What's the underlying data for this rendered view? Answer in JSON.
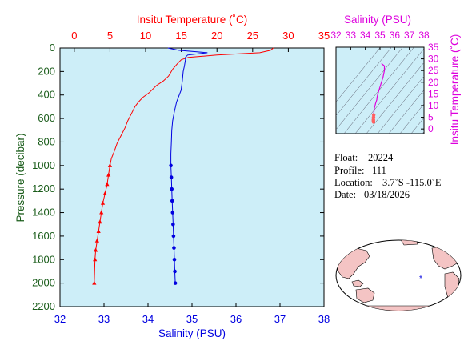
{
  "colors": {
    "temperature": "#ff0000",
    "salinity": "#0000e0",
    "pressure_axis": "#1a5c1a",
    "ts_salinity_axis": "#dd00dd",
    "plot_bg": "#cdeef8",
    "land": "#f4c4c4",
    "ocean": "#ffffff"
  },
  "chart_data": [
    {
      "type": "line",
      "xlabel_top": "Insitu Temperature (˚C)",
      "xlabel_bottom": "Salinity (PSU)",
      "ylabel": "Pressure (decibar)",
      "y_ticks": [
        "0",
        "200",
        "400",
        "600",
        "800",
        "1000",
        "1200",
        "1400",
        "1600",
        "1800",
        "2000",
        "2200"
      ],
      "temp_ticks": [
        "0",
        "5",
        "10",
        "15",
        "20",
        "25",
        "30",
        "35"
      ],
      "sal_ticks": [
        "32",
        "33",
        "34",
        "35",
        "36",
        "37",
        "38"
      ],
      "ylim": [
        0,
        2200
      ],
      "temp_lim": [
        -2,
        35
      ],
      "sal_lim": [
        32,
        38
      ],
      "series": [
        {
          "name": "",
          "variable": "temperature",
          "x": [
            27.9,
            27.5,
            26.0,
            20.0,
            16.0,
            15.0,
            14.5,
            13.8,
            13.2,
            12.5,
            11.5,
            10.5,
            9.6,
            9.0,
            8.5,
            8.0,
            7.5,
            7.1,
            6.6,
            6.0,
            5.6,
            5.2,
            5.0,
            4.8,
            4.6,
            4.3,
            4.0,
            3.8,
            3.6,
            3.4,
            3.2,
            3.0,
            2.9,
            2.8
          ],
          "y": [
            0,
            20,
            40,
            60,
            80,
            100,
            130,
            180,
            240,
            280,
            320,
            380,
            420,
            460,
            500,
            560,
            620,
            680,
            740,
            810,
            880,
            940,
            1000,
            1080,
            1160,
            1240,
            1320,
            1400,
            1480,
            1560,
            1640,
            1720,
            1800,
            2000
          ]
        },
        {
          "name": "",
          "variable": "salinity",
          "x": [
            34.45,
            34.7,
            35.35,
            34.9,
            34.85,
            34.85,
            34.83,
            34.8,
            34.78,
            34.75,
            34.7,
            34.65,
            34.6,
            34.56,
            34.54,
            34.53,
            34.52,
            34.52,
            34.53,
            34.54,
            34.55,
            34.56,
            34.57,
            34.58,
            34.59,
            34.6,
            34.61,
            34.62
          ],
          "y": [
            0,
            20,
            40,
            60,
            80,
            100,
            150,
            200,
            280,
            360,
            410,
            460,
            540,
            620,
            700,
            800,
            900,
            1000,
            1100,
            1200,
            1300,
            1400,
            1500,
            1600,
            1700,
            1800,
            1900,
            2000
          ]
        }
      ]
    },
    {
      "type": "scatter",
      "xlabel": "Salinity (PSU)",
      "ylabel": "Insitu Temperature (˚C)",
      "x_ticks": [
        "32",
        "33",
        "34",
        "35",
        "36",
        "37",
        "38"
      ],
      "y_ticks": [
        "0",
        "5",
        "10",
        "15",
        "20",
        "25",
        "30",
        "35"
      ],
      "xlim": [
        32,
        38
      ],
      "ylim": [
        -2,
        35
      ],
      "series": [
        {
          "name": "",
          "x": [
            35.1,
            35.3,
            35.3,
            35.2,
            35.05,
            34.95,
            34.85,
            34.8,
            34.78,
            34.7,
            34.66,
            34.62,
            34.6,
            34.58,
            34.57,
            34.56,
            34.55,
            34.55,
            34.56
          ],
          "y": [
            28.0,
            27.0,
            25.0,
            22.0,
            19.0,
            17.0,
            15.0,
            13.5,
            12.5,
            11.0,
            10.0,
            9.0,
            8.0,
            7.0,
            6.0,
            5.0,
            4.0,
            3.5,
            3.0
          ]
        }
      ]
    }
  ],
  "float_info": {
    "float_label": "Float:",
    "float_value": "20224",
    "profile_label": "Profile:",
    "profile_value": "111",
    "location_label": "Location:",
    "location_value": "3.7˚S  -115.0˚E",
    "date_label": "Date:",
    "date_value": "03/18/2026"
  },
  "map": {
    "marker": "*"
  }
}
